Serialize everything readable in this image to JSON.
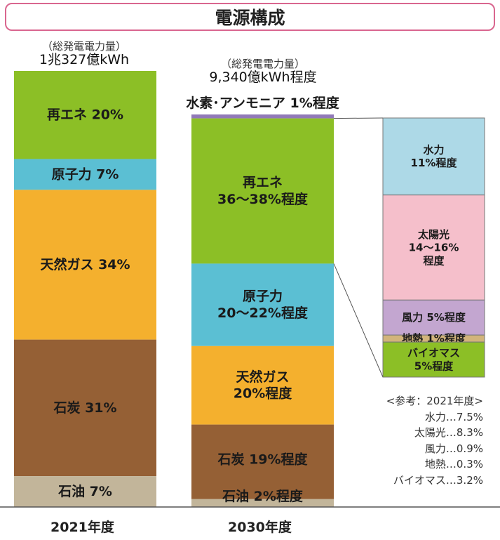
{
  "title": "電源構成",
  "bar2021": {
    "total_caption": "（総発電電力量）",
    "total_value": "1兆327億kWh",
    "year_label": "2021年度"
  },
  "bar2030": {
    "total_caption": "（総発電電力量）",
    "total_value": "9,340億kWh程度",
    "year_label": "2030年度"
  },
  "reference": {
    "title": "<参考：2021年度>",
    "items": [
      "水力…7.5%",
      "太陽光…8.3%",
      "風力…0.9%",
      "地熱…0.3%",
      "バイオマス…3.2%"
    ]
  },
  "chart_data": {
    "type": "stacked_bar",
    "title": "電源構成",
    "categories": [
      "2021年度",
      "2030年度"
    ],
    "series": [
      {
        "name": "再エネ",
        "values": [
          20,
          37
        ],
        "labels": [
          "再エネ 20%",
          "再エネ\n36〜38%程度"
        ],
        "color": "#8cbf26"
      },
      {
        "name": "原子力",
        "values": [
          7,
          21
        ],
        "labels": [
          "原子力 7%",
          "原子力\n20〜22%程度"
        ],
        "color": "#5bbfd3"
      },
      {
        "name": "天然ガス",
        "values": [
          34,
          20
        ],
        "labels": [
          "天然ガス 34%",
          "天然ガス\n20%程度"
        ],
        "color": "#f4b02e"
      },
      {
        "name": "石炭",
        "values": [
          31,
          19
        ],
        "labels": [
          "石炭 31%",
          "石炭 19%程度"
        ],
        "color": "#956035"
      },
      {
        "name": "石油",
        "values": [
          7,
          2
        ],
        "labels": [
          "石油 7%",
          "石油 2%程度"
        ],
        "color": "#c2b59a"
      },
      {
        "name": "水素・アンモニア",
        "values": [
          0,
          1
        ],
        "labels": [
          "",
          "水素･アンモニア 1%程度"
        ],
        "color": "#9179b8"
      }
    ],
    "renewable_breakdown_2030": [
      {
        "name": "水力",
        "value": 11,
        "label": "水力\n11%程度",
        "color": "#add9e7"
      },
      {
        "name": "太陽光",
        "value": 15,
        "label": "太陽光\n14〜16%\n程度",
        "color": "#f5bfcb"
      },
      {
        "name": "風力",
        "value": 5,
        "label": "風力 5%程度",
        "color": "#c3a6d0"
      },
      {
        "name": "地熱",
        "value": 1,
        "label": "地熱 1%程度",
        "color": "#d2b47b"
      },
      {
        "name": "バイオマス",
        "value": 5,
        "label": "バイオマス\n5%程度",
        "color": "#8cbf26"
      }
    ]
  }
}
